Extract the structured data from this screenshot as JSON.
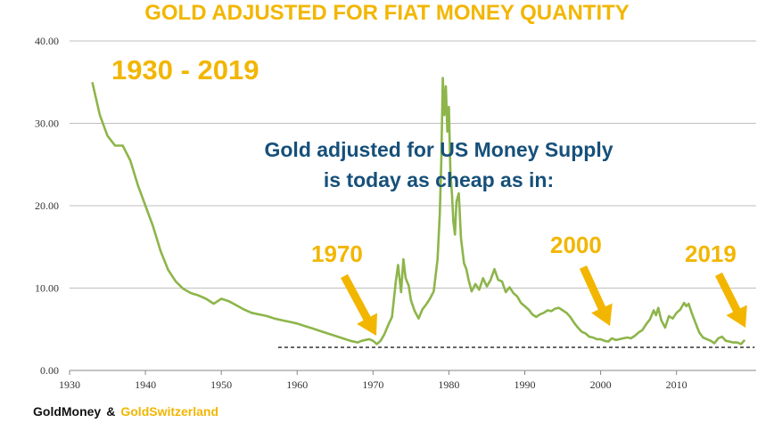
{
  "header": {
    "title": "GOLD ADJUSTED FOR FIAT MONEY QUANTITY",
    "range_label": "1930 - 2019"
  },
  "annotation": {
    "line1": "Gold adjusted for US Money Supply",
    "line2": "is today as cheap as in:"
  },
  "callouts": [
    "1970",
    "2000",
    "2019"
  ],
  "footer": {
    "left": "GoldMoney",
    "amp": "&",
    "right": "GoldSwitzerland"
  },
  "colors": {
    "accent": "#f2b600",
    "line": "#8db54a",
    "annotation": "#16507a",
    "grid": "#bfbfbf"
  },
  "chart_data": {
    "type": "line",
    "title": "GOLD ADJUSTED FOR FIAT MONEY QUANTITY",
    "xlabel": "",
    "ylabel": "",
    "xlim": [
      1930,
      2019
    ],
    "ylim": [
      0,
      40
    ],
    "xticks": [
      "1930",
      "1940",
      "1950",
      "1960",
      "1970",
      "1980",
      "1990",
      "2000",
      "2010"
    ],
    "yticks": [
      "0.00",
      "10.00",
      "20.00",
      "30.00",
      "40.00"
    ],
    "grid": true,
    "legend": "none",
    "reference_line": {
      "y": 2.8,
      "style": "dashed"
    },
    "series": [
      {
        "x": [
          1933.0,
          1934.0,
          1935.0,
          1936.0,
          1937.0,
          1938.0,
          1939.0,
          1940.0,
          1941.0,
          1942.0,
          1943.0,
          1944.0,
          1945.0,
          1946.0,
          1947.0,
          1948.0,
          1949.0,
          1950.0,
          1951.0,
          1952.0,
          1953.0,
          1954.0,
          1955.0,
          1956.0,
          1957.0,
          1958.0,
          1959.0,
          1960.0,
          1961.0,
          1962.0,
          1963.0,
          1964.0,
          1965.0,
          1966.0,
          1967.0,
          1968.0,
          1968.5,
          1969.0,
          1969.5,
          1970.0,
          1970.5,
          1971.0,
          1971.5,
          1972.0,
          1972.5,
          1973.0,
          1973.3,
          1973.7,
          1974.0,
          1974.3,
          1974.7,
          1975.0,
          1975.5,
          1976.0,
          1976.5,
          1977.0,
          1977.5,
          1978.0,
          1978.5,
          1978.8,
          1979.0,
          1979.2,
          1979.4,
          1979.6,
          1979.8,
          1980.0,
          1980.2,
          1980.4,
          1980.6,
          1980.8,
          1981.0,
          1981.3,
          1981.6,
          1981.8,
          1982.0,
          1982.3,
          1982.6,
          1983.0,
          1983.5,
          1984.0,
          1984.5,
          1985.0,
          1985.5,
          1986.0,
          1986.5,
          1987.0,
          1987.5,
          1988.0,
          1988.5,
          1989.0,
          1989.5,
          1990.0,
          1990.5,
          1991.0,
          1991.5,
          1992.0,
          1992.5,
          1993.0,
          1993.5,
          1994.0,
          1994.5,
          1995.0,
          1995.5,
          1996.0,
          1996.5,
          1997.0,
          1997.5,
          1998.0,
          1998.5,
          1999.0,
          1999.5,
          2000.0,
          2000.5,
          2001.0,
          2001.5,
          2002.0,
          2002.5,
          2003.0,
          2003.5,
          2004.0,
          2004.5,
          2005.0,
          2005.5,
          2006.0,
          2006.5,
          2007.0,
          2007.3,
          2007.6,
          2008.0,
          2008.5,
          2009.0,
          2009.5,
          2010.0,
          2010.5,
          2011.0,
          2011.3,
          2011.6,
          2012.0,
          2012.5,
          2013.0,
          2013.5,
          2014.0,
          2014.5,
          2015.0,
          2015.5,
          2016.0,
          2016.5,
          2017.0,
          2017.5,
          2018.0,
          2018.5,
          2019.0
        ],
        "values": [
          35.0,
          31.0,
          28.5,
          27.3,
          27.3,
          25.5,
          22.5,
          20.0,
          17.5,
          14.5,
          12.2,
          10.8,
          9.9,
          9.4,
          9.1,
          8.7,
          8.1,
          8.7,
          8.4,
          7.9,
          7.4,
          7.0,
          6.8,
          6.6,
          6.3,
          6.1,
          5.9,
          5.7,
          5.4,
          5.1,
          4.8,
          4.5,
          4.2,
          3.9,
          3.6,
          3.4,
          3.6,
          3.7,
          3.8,
          3.6,
          3.2,
          3.6,
          4.4,
          5.5,
          6.5,
          10.8,
          12.8,
          9.5,
          13.5,
          11.2,
          10.3,
          8.5,
          7.2,
          6.3,
          7.4,
          8.0,
          8.7,
          9.6,
          13.5,
          19.0,
          25.5,
          35.5,
          31.0,
          34.5,
          29.0,
          32.0,
          24.0,
          21.5,
          18.0,
          16.5,
          20.5,
          21.5,
          16.0,
          14.5,
          13.0,
          12.3,
          11.0,
          9.6,
          10.5,
          9.8,
          11.2,
          10.2,
          11.0,
          12.3,
          11.0,
          10.8,
          9.5,
          10.1,
          9.4,
          9.0,
          8.2,
          7.8,
          7.4,
          6.8,
          6.5,
          6.8,
          7.0,
          7.3,
          7.2,
          7.5,
          7.6,
          7.3,
          7.0,
          6.5,
          5.8,
          5.2,
          4.7,
          4.5,
          4.1,
          4.0,
          3.8,
          3.8,
          3.6,
          3.5,
          3.9,
          3.7,
          3.8,
          3.9,
          4.0,
          3.9,
          4.2,
          4.6,
          4.9,
          5.6,
          6.2,
          7.3,
          6.7,
          7.6,
          6.1,
          5.2,
          6.6,
          6.3,
          7.0,
          7.4,
          8.2,
          7.8,
          8.1,
          7.0,
          5.8,
          4.6,
          4.0,
          3.8,
          3.6,
          3.3,
          3.9,
          4.1,
          3.6,
          3.5,
          3.4,
          3.4,
          3.2,
          3.7
        ]
      }
    ]
  }
}
